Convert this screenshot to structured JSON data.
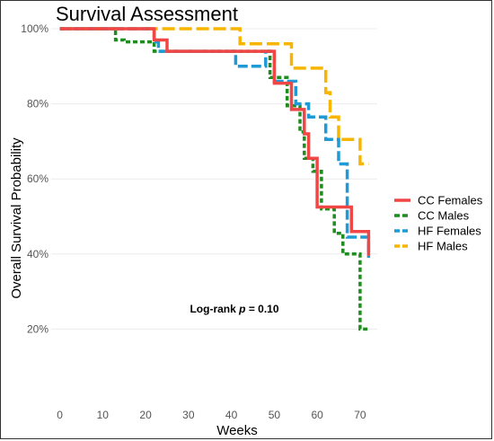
{
  "chart_data": {
    "type": "line",
    "title": "Survival Assessment",
    "xlabel": "Weeks",
    "ylabel": "Overall Survival Probability",
    "xlim": [
      -2,
      74
    ],
    "ylim": [
      0,
      1
    ],
    "x_ticks": [
      0,
      10,
      20,
      30,
      40,
      50,
      60,
      70
    ],
    "y_ticks": [
      0.2,
      0.4,
      0.6,
      0.8,
      1.0
    ],
    "y_tick_labels": [
      "20%",
      "40%",
      "60%",
      "80%",
      "100%"
    ],
    "grid": true,
    "legend": "right",
    "annotation": {
      "prefix": "Log-rank ",
      "italic": "p",
      "suffix": " = 0.10",
      "x": 50,
      "y": 0.2
    },
    "series": [
      {
        "name": "CC Females",
        "color": "#F04646",
        "dash": "solid",
        "points": [
          [
            0,
            1.0
          ],
          [
            22,
            1.0
          ],
          [
            22,
            0.97
          ],
          [
            25,
            0.97
          ],
          [
            25,
            0.94
          ],
          [
            50,
            0.94
          ],
          [
            50,
            0.855
          ],
          [
            54,
            0.855
          ],
          [
            54,
            0.785
          ],
          [
            57,
            0.785
          ],
          [
            57,
            0.72
          ],
          [
            58,
            0.72
          ],
          [
            58,
            0.655
          ],
          [
            60,
            0.655
          ],
          [
            60,
            0.525
          ],
          [
            68,
            0.525
          ],
          [
            68,
            0.46
          ],
          [
            72,
            0.46
          ],
          [
            72,
            0.395
          ]
        ]
      },
      {
        "name": "CC Males",
        "color": "#1E8C1E",
        "dash": "dotted",
        "points": [
          [
            0,
            1.0
          ],
          [
            13,
            1.0
          ],
          [
            13,
            0.97
          ],
          [
            15,
            0.97
          ],
          [
            15,
            0.965
          ],
          [
            22,
            0.965
          ],
          [
            22,
            0.94
          ],
          [
            49,
            0.94
          ],
          [
            49,
            0.87
          ],
          [
            53,
            0.87
          ],
          [
            53,
            0.795
          ],
          [
            56,
            0.795
          ],
          [
            56,
            0.725
          ],
          [
            57,
            0.725
          ],
          [
            57,
            0.655
          ],
          [
            59,
            0.655
          ],
          [
            59,
            0.62
          ],
          [
            61,
            0.62
          ],
          [
            61,
            0.52
          ],
          [
            64,
            0.52
          ],
          [
            64,
            0.455
          ],
          [
            66,
            0.455
          ],
          [
            66,
            0.4
          ],
          [
            70,
            0.4
          ],
          [
            70,
            0.2
          ],
          [
            72,
            0.2
          ]
        ]
      },
      {
        "name": "HF Females",
        "color": "#1E9BD7",
        "dash": "dashed",
        "points": [
          [
            0,
            1.0
          ],
          [
            22,
            1.0
          ],
          [
            22,
            0.965
          ],
          [
            23,
            0.965
          ],
          [
            23,
            0.94
          ],
          [
            41,
            0.94
          ],
          [
            41,
            0.9
          ],
          [
            48,
            0.9
          ],
          [
            48,
            0.94
          ],
          [
            50,
            0.94
          ],
          [
            50,
            0.86
          ],
          [
            55,
            0.86
          ],
          [
            55,
            0.8
          ],
          [
            58,
            0.8
          ],
          [
            58,
            0.765
          ],
          [
            62,
            0.765
          ],
          [
            62,
            0.705
          ],
          [
            65,
            0.705
          ],
          [
            65,
            0.64
          ],
          [
            67,
            0.64
          ],
          [
            67,
            0.445
          ],
          [
            72,
            0.445
          ],
          [
            72,
            0.39
          ]
        ]
      },
      {
        "name": "HF Males",
        "color": "#F7B500",
        "dash": "longdash",
        "points": [
          [
            0,
            1.0
          ],
          [
            42,
            1.0
          ],
          [
            42,
            0.96
          ],
          [
            54,
            0.96
          ],
          [
            54,
            0.895
          ],
          [
            59,
            0.895
          ],
          [
            59,
            0.895
          ],
          [
            62,
            0.895
          ],
          [
            62,
            0.83
          ],
          [
            63,
            0.83
          ],
          [
            63,
            0.765
          ],
          [
            65,
            0.765
          ],
          [
            65,
            0.705
          ],
          [
            70,
            0.705
          ],
          [
            70,
            0.64
          ],
          [
            72,
            0.64
          ]
        ]
      }
    ]
  }
}
